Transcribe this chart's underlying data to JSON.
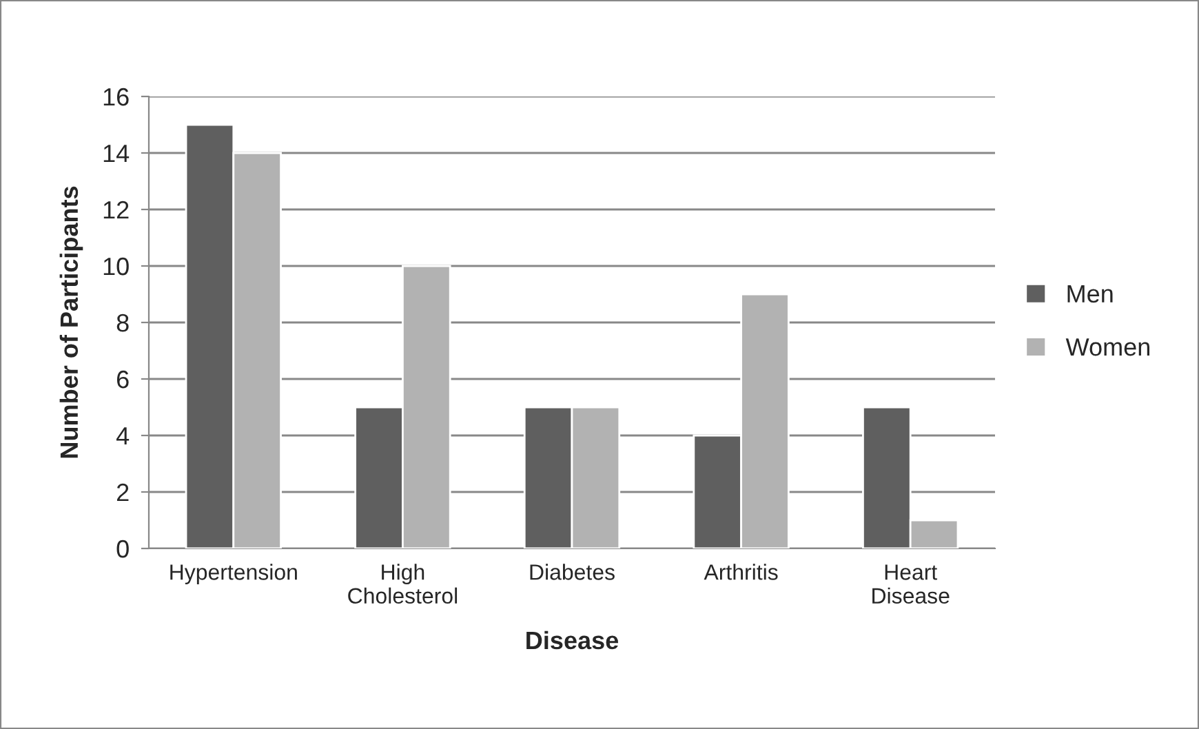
{
  "chart_data": {
    "type": "bar",
    "xlabel": "Disease",
    "ylabel": "Number of Participants",
    "categories": [
      "Hypertension",
      "High Cholesterol",
      "Diabetes",
      "Arthritis",
      "Heart Disease"
    ],
    "series": [
      {
        "name": "Men",
        "color": "#5f5f5f",
        "values": [
          15,
          5,
          5,
          4,
          5
        ]
      },
      {
        "name": "Women",
        "color": "#b2b2b2",
        "values": [
          14,
          10,
          5,
          9,
          1
        ]
      }
    ],
    "ylim": [
      0,
      16
    ],
    "yticks": [
      0,
      2,
      4,
      6,
      8,
      10,
      12,
      14,
      16
    ],
    "grid": "y",
    "legend": "right"
  }
}
